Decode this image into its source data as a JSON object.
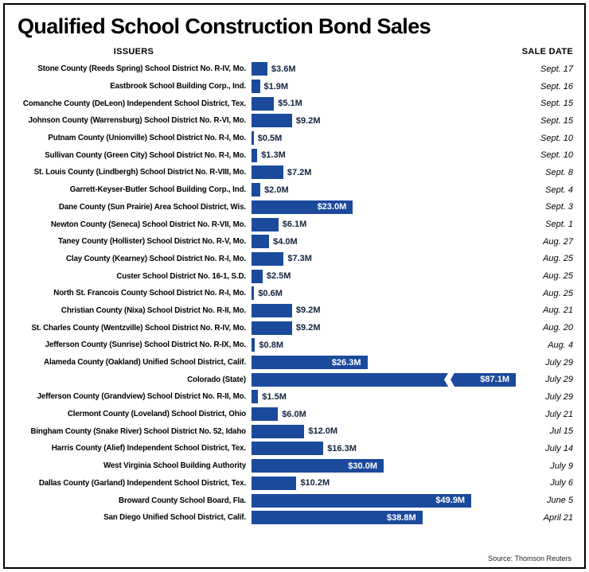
{
  "title": "Qualified School Construction Bond Sales",
  "columns": {
    "issuers": "ISSUERS",
    "sale_date": "SALE DATE"
  },
  "source": "Source: Thomson Reuters",
  "colors": {
    "bar": "#1b4a9c",
    "value_text": "#13233f",
    "value_text_inside": "#ffffff"
  },
  "chart_data": {
    "type": "bar",
    "orientation": "horizontal",
    "value_unit": "millions USD",
    "xlim": [
      0,
      60
    ],
    "truncation_note": "Colorado (State) bar drawn with axis break; value exceeds scale",
    "rows": [
      {
        "issuer": "Stone County (Reeds Spring) School District No. R-IV, Mo.",
        "value": 3.6,
        "label": "$3.6M",
        "date": "Sept. 17",
        "label_inside": false
      },
      {
        "issuer": "Eastbrook School Building Corp., Ind.",
        "value": 1.9,
        "label": "$1.9M",
        "date": "Sept. 16",
        "label_inside": false
      },
      {
        "issuer": "Comanche County (DeLeon) Independent School District, Tex.",
        "value": 5.1,
        "label": "$5.1M",
        "date": "Sept. 15",
        "label_inside": false
      },
      {
        "issuer": "Johnson County (Warrensburg) School District No. R-VI, Mo.",
        "value": 9.2,
        "label": "$9.2M",
        "date": "Sept. 15",
        "label_inside": false
      },
      {
        "issuer": "Putnam County (Unionville) School District No. R-I, Mo.",
        "value": 0.5,
        "label": "$0.5M",
        "date": "Sept. 10",
        "label_inside": false
      },
      {
        "issuer": "Sullivan County (Green City) School District No. R-I, Mo.",
        "value": 1.3,
        "label": "$1.3M",
        "date": "Sept. 10",
        "label_inside": false
      },
      {
        "issuer": "St. Louis County (Lindbergh) School District No. R-VIII, Mo.",
        "value": 7.2,
        "label": "$7.2M",
        "date": "Sept. 8",
        "label_inside": false
      },
      {
        "issuer": "Garrett-Keyser-Butler School Building Corp., Ind.",
        "value": 2.0,
        "label": "$2.0M",
        "date": "Sept. 4",
        "label_inside": false
      },
      {
        "issuer": "Dane County (Sun Prairie) Area School District, Wis.",
        "value": 23.0,
        "label": "$23.0M",
        "date": "Sept. 3",
        "label_inside": true
      },
      {
        "issuer": "Newton County (Seneca) School District No. R-VII, Mo.",
        "value": 6.1,
        "label": "$6.1M",
        "date": "Sept. 1",
        "label_inside": false
      },
      {
        "issuer": "Taney County (Hollister) School District No. R-V, Mo.",
        "value": 4.0,
        "label": "$4.0M",
        "date": "Aug. 27",
        "label_inside": false
      },
      {
        "issuer": "Clay County (Kearney) School District No. R-I, Mo.",
        "value": 7.3,
        "label": "$7.3M",
        "date": "Aug. 25",
        "label_inside": false
      },
      {
        "issuer": "Custer School District No. 16-1, S.D.",
        "value": 2.5,
        "label": "$2.5M",
        "date": "Aug. 25",
        "label_inside": false
      },
      {
        "issuer": "North St. Francois County School District No. R-I, Mo.",
        "value": 0.6,
        "label": "$0.6M",
        "date": "Aug. 25",
        "label_inside": false
      },
      {
        "issuer": "Christian County (Nixa) School District No. R-II, Mo.",
        "value": 9.2,
        "label": "$9.2M",
        "date": "Aug. 21",
        "label_inside": false
      },
      {
        "issuer": "St. Charles County (Wentzville) School District No. R-IV, Mo.",
        "value": 9.2,
        "label": "$9.2M",
        "date": "Aug. 20",
        "label_inside": false
      },
      {
        "issuer": "Jefferson County (Sunrise) School District No. R-IX, Mo.",
        "value": 0.8,
        "label": "$0.8M",
        "date": "Aug. 4",
        "label_inside": false
      },
      {
        "issuer": "Alameda County (Oakland) Unified School District, Calif.",
        "value": 26.3,
        "label": "$26.3M",
        "date": "July 29",
        "label_inside": true
      },
      {
        "issuer": "Colorado (State)",
        "value": 87.1,
        "label": "$87.1M",
        "date": "July 29",
        "label_inside": true,
        "truncated": true
      },
      {
        "issuer": "Jefferson County (Grandview) School District No. R-II, Mo.",
        "value": 1.5,
        "label": "$1.5M",
        "date": "July 29",
        "label_inside": false
      },
      {
        "issuer": "Clermont County (Loveland) School District, Ohio",
        "value": 6.0,
        "label": "$6.0M",
        "date": "July 21",
        "label_inside": false
      },
      {
        "issuer": "Bingham County (Snake River) School District No. 52, Idaho",
        "value": 12.0,
        "label": "$12.0M",
        "date": "Jul 15",
        "label_inside": false
      },
      {
        "issuer": "Harris County (Alief) Independent School District, Tex.",
        "value": 16.3,
        "label": "$16.3M",
        "date": "July 14",
        "label_inside": false
      },
      {
        "issuer": "West Virginia School Building Authority",
        "value": 30.0,
        "label": "$30.0M",
        "date": "July 9",
        "label_inside": true
      },
      {
        "issuer": "Dallas County (Garland) Independent School District, Tex.",
        "value": 10.2,
        "label": "$10.2M",
        "date": "July 6",
        "label_inside": false
      },
      {
        "issuer": "Broward County School Board, Fla.",
        "value": 49.9,
        "label": "$49.9M",
        "date": "June 5",
        "label_inside": true
      },
      {
        "issuer": "San Diego Unified School District, Calif.",
        "value": 38.8,
        "label": "$38.8M",
        "date": "April 21",
        "label_inside": true
      }
    ]
  }
}
